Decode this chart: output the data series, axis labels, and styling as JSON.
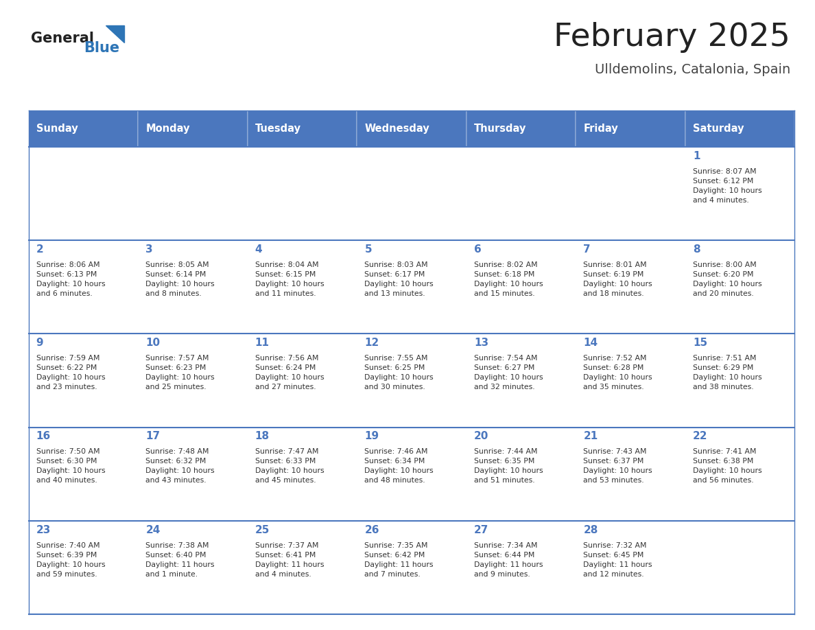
{
  "title": "February 2025",
  "subtitle": "Ulldemolins, Catalonia, Spain",
  "header_bg": "#4B77BE",
  "header_text_color": "#FFFFFF",
  "days_of_week": [
    "Sunday",
    "Monday",
    "Tuesday",
    "Wednesday",
    "Thursday",
    "Friday",
    "Saturday"
  ],
  "cell_bg": "#FFFFFF",
  "alt_cell_bg": "#F2F2F2",
  "grid_line_color": "#4B77BE",
  "day_number_color": "#4B77BE",
  "info_text_color": "#333333",
  "title_color": "#222222",
  "subtitle_color": "#444444",
  "logo_general_color": "#222222",
  "logo_blue_color": "#2E75B6",
  "logo_triangle_color": "#2E75B6",
  "weeks": [
    [
      {
        "day": 0,
        "info": ""
      },
      {
        "day": 0,
        "info": ""
      },
      {
        "day": 0,
        "info": ""
      },
      {
        "day": 0,
        "info": ""
      },
      {
        "day": 0,
        "info": ""
      },
      {
        "day": 0,
        "info": ""
      },
      {
        "day": 1,
        "info": "Sunrise: 8:07 AM\nSunset: 6:12 PM\nDaylight: 10 hours\nand 4 minutes."
      }
    ],
    [
      {
        "day": 2,
        "info": "Sunrise: 8:06 AM\nSunset: 6:13 PM\nDaylight: 10 hours\nand 6 minutes."
      },
      {
        "day": 3,
        "info": "Sunrise: 8:05 AM\nSunset: 6:14 PM\nDaylight: 10 hours\nand 8 minutes."
      },
      {
        "day": 4,
        "info": "Sunrise: 8:04 AM\nSunset: 6:15 PM\nDaylight: 10 hours\nand 11 minutes."
      },
      {
        "day": 5,
        "info": "Sunrise: 8:03 AM\nSunset: 6:17 PM\nDaylight: 10 hours\nand 13 minutes."
      },
      {
        "day": 6,
        "info": "Sunrise: 8:02 AM\nSunset: 6:18 PM\nDaylight: 10 hours\nand 15 minutes."
      },
      {
        "day": 7,
        "info": "Sunrise: 8:01 AM\nSunset: 6:19 PM\nDaylight: 10 hours\nand 18 minutes."
      },
      {
        "day": 8,
        "info": "Sunrise: 8:00 AM\nSunset: 6:20 PM\nDaylight: 10 hours\nand 20 minutes."
      }
    ],
    [
      {
        "day": 9,
        "info": "Sunrise: 7:59 AM\nSunset: 6:22 PM\nDaylight: 10 hours\nand 23 minutes."
      },
      {
        "day": 10,
        "info": "Sunrise: 7:57 AM\nSunset: 6:23 PM\nDaylight: 10 hours\nand 25 minutes."
      },
      {
        "day": 11,
        "info": "Sunrise: 7:56 AM\nSunset: 6:24 PM\nDaylight: 10 hours\nand 27 minutes."
      },
      {
        "day": 12,
        "info": "Sunrise: 7:55 AM\nSunset: 6:25 PM\nDaylight: 10 hours\nand 30 minutes."
      },
      {
        "day": 13,
        "info": "Sunrise: 7:54 AM\nSunset: 6:27 PM\nDaylight: 10 hours\nand 32 minutes."
      },
      {
        "day": 14,
        "info": "Sunrise: 7:52 AM\nSunset: 6:28 PM\nDaylight: 10 hours\nand 35 minutes."
      },
      {
        "day": 15,
        "info": "Sunrise: 7:51 AM\nSunset: 6:29 PM\nDaylight: 10 hours\nand 38 minutes."
      }
    ],
    [
      {
        "day": 16,
        "info": "Sunrise: 7:50 AM\nSunset: 6:30 PM\nDaylight: 10 hours\nand 40 minutes."
      },
      {
        "day": 17,
        "info": "Sunrise: 7:48 AM\nSunset: 6:32 PM\nDaylight: 10 hours\nand 43 minutes."
      },
      {
        "day": 18,
        "info": "Sunrise: 7:47 AM\nSunset: 6:33 PM\nDaylight: 10 hours\nand 45 minutes."
      },
      {
        "day": 19,
        "info": "Sunrise: 7:46 AM\nSunset: 6:34 PM\nDaylight: 10 hours\nand 48 minutes."
      },
      {
        "day": 20,
        "info": "Sunrise: 7:44 AM\nSunset: 6:35 PM\nDaylight: 10 hours\nand 51 minutes."
      },
      {
        "day": 21,
        "info": "Sunrise: 7:43 AM\nSunset: 6:37 PM\nDaylight: 10 hours\nand 53 minutes."
      },
      {
        "day": 22,
        "info": "Sunrise: 7:41 AM\nSunset: 6:38 PM\nDaylight: 10 hours\nand 56 minutes."
      }
    ],
    [
      {
        "day": 23,
        "info": "Sunrise: 7:40 AM\nSunset: 6:39 PM\nDaylight: 10 hours\nand 59 minutes."
      },
      {
        "day": 24,
        "info": "Sunrise: 7:38 AM\nSunset: 6:40 PM\nDaylight: 11 hours\nand 1 minute."
      },
      {
        "day": 25,
        "info": "Sunrise: 7:37 AM\nSunset: 6:41 PM\nDaylight: 11 hours\nand 4 minutes."
      },
      {
        "day": 26,
        "info": "Sunrise: 7:35 AM\nSunset: 6:42 PM\nDaylight: 11 hours\nand 7 minutes."
      },
      {
        "day": 27,
        "info": "Sunrise: 7:34 AM\nSunset: 6:44 PM\nDaylight: 11 hours\nand 9 minutes."
      },
      {
        "day": 28,
        "info": "Sunrise: 7:32 AM\nSunset: 6:45 PM\nDaylight: 11 hours\nand 12 minutes."
      },
      {
        "day": 0,
        "info": ""
      }
    ]
  ]
}
